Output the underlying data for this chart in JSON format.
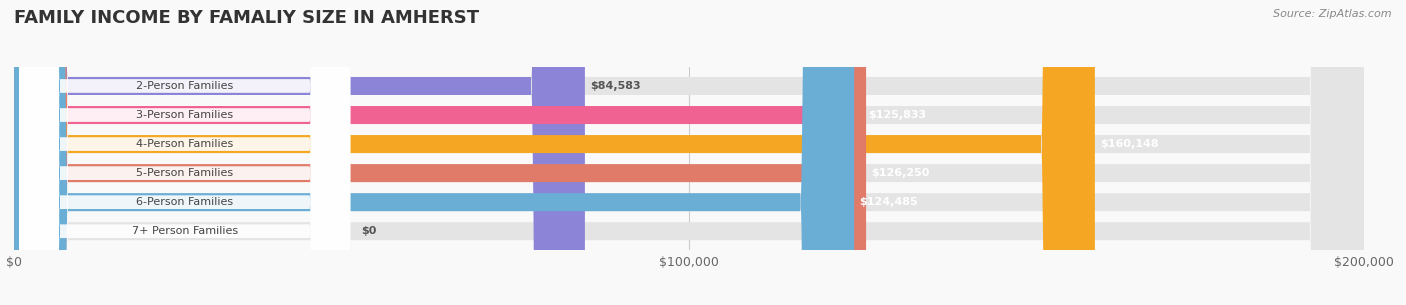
{
  "title": "FAMILY INCOME BY FAMALIY SIZE IN AMHERST",
  "source": "Source: ZipAtlas.com",
  "categories": [
    "2-Person Families",
    "3-Person Families",
    "4-Person Families",
    "5-Person Families",
    "6-Person Families",
    "7+ Person Families"
  ],
  "values": [
    84583,
    125833,
    160148,
    126250,
    124485,
    0
  ],
  "bar_colors": [
    "#8b84d7",
    "#f06292",
    "#f5a623",
    "#e07b6a",
    "#6aaed6",
    "#c4a8d4"
  ],
  "label_colors": [
    "#555555",
    "#ffffff",
    "#ffffff",
    "#ffffff",
    "#ffffff",
    "#555555"
  ],
  "xlim": [
    0,
    200000
  ],
  "xticks": [
    0,
    100000,
    200000
  ],
  "xtick_labels": [
    "$0",
    "$100,000",
    "$200,000"
  ],
  "value_labels": [
    "$84,583",
    "$125,833",
    "$160,148",
    "$126,250",
    "$124,485",
    "$0"
  ],
  "bg_color": "#f9f9f9",
  "title_color": "#333333",
  "title_fontsize": 13,
  "source_fontsize": 8,
  "bar_height": 0.62,
  "figsize": [
    14.06,
    3.05
  ],
  "dpi": 100
}
